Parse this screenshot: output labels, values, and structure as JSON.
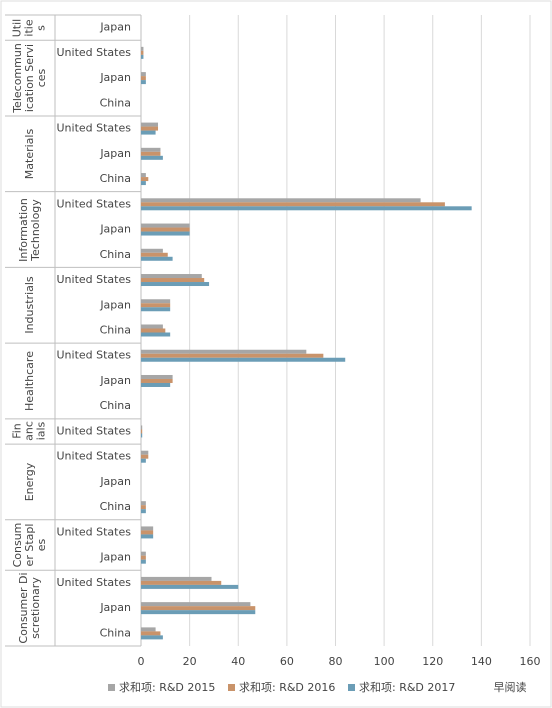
{
  "chart_data": {
    "type": "bar",
    "orientation": "horizontal",
    "groups": [
      {
        "name": "Utilities",
        "categories": [
          "Japan"
        ]
      },
      {
        "name": "Telecommunication Services",
        "categories": [
          "United States",
          "Japan",
          "China"
        ]
      },
      {
        "name": "Materials",
        "categories": [
          "United States",
          "Japan",
          "China"
        ]
      },
      {
        "name": "Information Technology",
        "categories": [
          "United States",
          "Japan",
          "China"
        ]
      },
      {
        "name": "Industrials",
        "categories": [
          "United States",
          "Japan",
          "China"
        ]
      },
      {
        "name": "Healthcare",
        "categories": [
          "United States",
          "Japan",
          "China"
        ]
      },
      {
        "name": "Financials",
        "categories": [
          "United States"
        ]
      },
      {
        "name": "Energy",
        "categories": [
          "United States",
          "Japan",
          "China"
        ]
      },
      {
        "name": "Consumer Staples",
        "categories": [
          "United States",
          "Japan"
        ]
      },
      {
        "name": "Consumer Discretionary",
        "categories": [
          "United States",
          "Japan",
          "China"
        ]
      }
    ],
    "series": [
      {
        "name": "求和项: R&D 2015",
        "color": "#a6a6a6",
        "values": [
          null,
          1,
          2,
          null,
          7,
          8,
          2,
          115,
          20,
          9,
          25,
          12,
          9,
          68,
          13,
          null,
          0.5,
          3,
          null,
          2,
          5,
          2,
          29,
          45,
          6
        ]
      },
      {
        "name": "求和项: R&D 2016",
        "color": "#c9936a",
        "values": [
          null,
          1,
          2,
          null,
          7,
          8,
          3,
          125,
          20,
          11,
          26,
          12,
          10,
          75,
          13,
          null,
          0.5,
          3,
          null,
          2,
          5,
          2,
          33,
          47,
          8
        ]
      },
      {
        "name": "求和项: R&D 2017",
        "color": "#6b9db6",
        "values": [
          null,
          1,
          2,
          null,
          6,
          9,
          2,
          136,
          20,
          13,
          28,
          12,
          12,
          84,
          12,
          null,
          0.5,
          2,
          null,
          2,
          5,
          2,
          40,
          47,
          9
        ]
      }
    ],
    "xlim": [
      0,
      160
    ],
    "xticks": [
      0,
      20,
      40,
      60,
      80,
      100,
      120,
      140,
      160
    ],
    "grid": true,
    "legend": "bottom",
    "watermark": "早阅读"
  }
}
